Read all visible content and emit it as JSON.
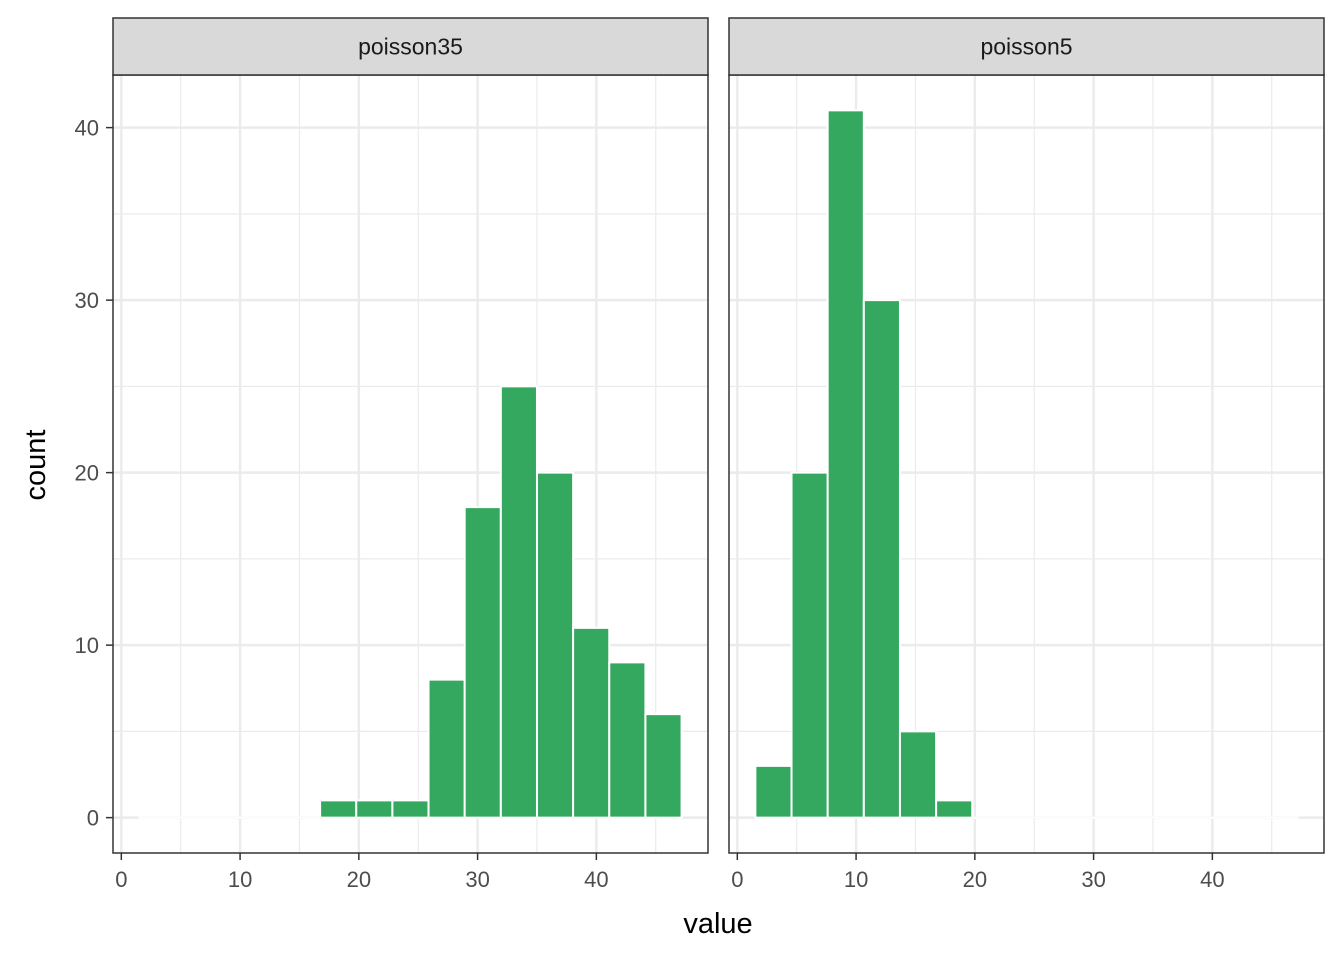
{
  "chart_data": {
    "type": "bar",
    "chart_kind": "faceted histogram",
    "title": "",
    "xlabel": "value",
    "ylabel": "count",
    "xlim": [
      -0.7,
      49.4
    ],
    "ylim": [
      -2.05,
      43.05
    ],
    "x_ticks": [
      0,
      10,
      20,
      30,
      40
    ],
    "y_ticks": [
      0,
      10,
      20,
      30,
      40
    ],
    "grid": true,
    "bar_color": "#34a85e",
    "bar_outline": "#ffffff",
    "panel_border_color": "#333333",
    "strip_fill": "#d9d9d9",
    "grid_color": "#ebebeb",
    "bin_width": 3.043,
    "bin_centers": [
      3.043,
      6.087,
      9.13,
      12.174,
      15.217,
      18.261,
      21.304,
      24.348,
      27.391,
      30.435,
      33.478,
      36.522,
      39.565,
      42.609,
      45.652
    ],
    "facets": [
      {
        "name": "poisson35",
        "values": [
          0,
          0,
          0,
          0,
          0,
          1,
          1,
          1,
          8,
          18,
          25,
          20,
          11,
          9,
          6
        ]
      },
      {
        "name": "poisson5",
        "values": [
          3,
          20,
          41,
          30,
          5,
          1,
          0,
          0,
          0,
          0,
          0,
          0,
          0,
          0,
          0
        ]
      }
    ]
  }
}
